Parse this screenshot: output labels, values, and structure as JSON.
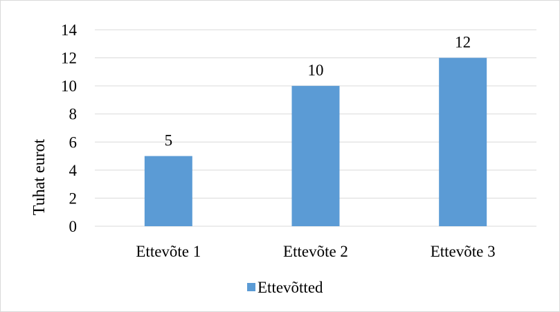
{
  "chart_data": {
    "type": "bar",
    "categories": [
      "Ettevõte 1",
      "Ettevõte 2",
      "Ettevõte 3"
    ],
    "series": [
      {
        "name": "Ettevõtted",
        "values": [
          5,
          10,
          12
        ],
        "color": "#5B9BD5"
      }
    ],
    "data_labels": [
      "5",
      "10",
      "12"
    ],
    "title": "",
    "xlabel": "",
    "ylabel": "Tuhat eurot",
    "ylim": [
      0,
      14
    ],
    "yticks": [
      0,
      2,
      4,
      6,
      8,
      10,
      12,
      14
    ],
    "grid": true,
    "legend_position": "bottom"
  },
  "colors": {
    "background": "#ffffff",
    "border": "#d9d9d9",
    "gridline": "#d9d9d9",
    "bar": "#5B9BD5"
  }
}
